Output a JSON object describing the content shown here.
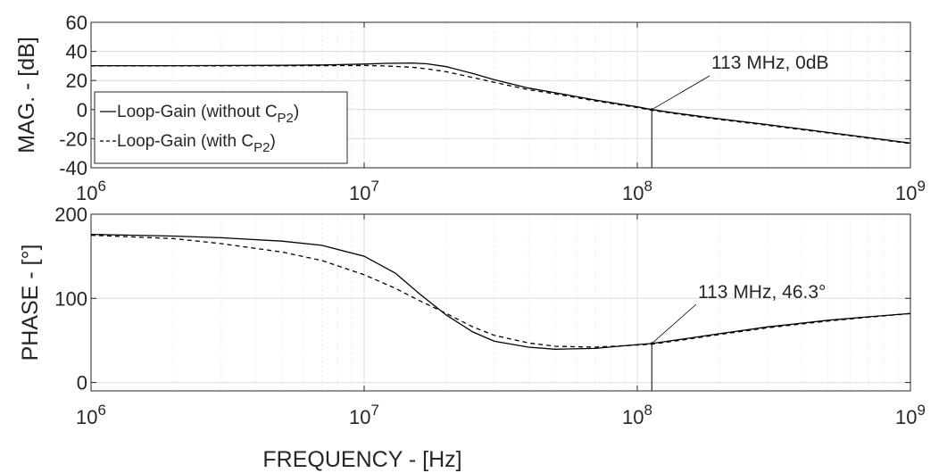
{
  "chart_data": {
    "xlabel": "FREQUENCY - [Hz]",
    "legend_position": "lower-left of magnitude plot",
    "legend": [
      {
        "label_main": "Loop-Gain (without C",
        "label_sub": "P2",
        "label_end": ")",
        "style": "solid"
      },
      {
        "label_main": "Loop-Gain (with C",
        "label_sub": "P2",
        "label_end": ")",
        "style": "dashed"
      }
    ],
    "x_ticks": [
      {
        "base": "10",
        "exp": "6"
      },
      {
        "base": "10",
        "exp": "7"
      },
      {
        "base": "10",
        "exp": "8"
      },
      {
        "base": "10",
        "exp": "9"
      }
    ],
    "marker_freq_hz": 113000000,
    "plots": [
      {
        "id": "magnitude",
        "type": "line",
        "x_scale": "log",
        "xlim": [
          1000000,
          1000000000
        ],
        "ylim": [
          -40,
          60
        ],
        "yticks": [
          -40,
          -20,
          0,
          20,
          40,
          60
        ],
        "ylabel": "MAG. - [dB]",
        "grid": true,
        "annotation": {
          "text": "113 MHz, 0dB",
          "x": 113000000,
          "y": 0
        },
        "series": [
          {
            "name": "Loop-Gain (without C_P2)",
            "style": "solid",
            "x": [
              1000000,
              2000000,
              5000000,
              7000000,
              10000000,
              12000000,
              15000000,
              17000000,
              20000000,
              25000000,
              30000000,
              40000000,
              50000000,
              70000000,
              100000000,
              113000000,
              150000000,
              200000000,
              300000000,
              500000000,
              700000000,
              1000000000
            ],
            "y": [
              30.2,
              30.2,
              30.4,
              30.7,
              31.3,
              31.8,
              32.0,
              31.5,
              29.5,
              24.8,
              20.5,
              14.8,
              11.6,
              6.6,
              1.9,
              0,
              -3.3,
              -6.3,
              -10.3,
              -15.7,
              -19.2,
              -23.0
            ]
          },
          {
            "name": "Loop-Gain (with C_P2)",
            "style": "dashed",
            "x": [
              1000000,
              2000000,
              5000000,
              7000000,
              10000000,
              12000000,
              15000000,
              17000000,
              20000000,
              25000000,
              30000000,
              40000000,
              50000000,
              70000000,
              100000000,
              113000000,
              150000000,
              200000000,
              300000000,
              500000000,
              700000000,
              1000000000
            ],
            "y": [
              30.0,
              30.0,
              30.1,
              30.2,
              30.3,
              30.0,
              29.1,
              28.0,
              26.0,
              22.0,
              18.7,
              13.7,
              10.8,
              6.0,
              1.4,
              -0.5,
              -3.8,
              -6.8,
              -10.8,
              -16.1,
              -19.6,
              -23.4
            ]
          }
        ]
      },
      {
        "id": "phase",
        "type": "line",
        "x_scale": "log",
        "xlim": [
          1000000,
          1000000000
        ],
        "ylim": [
          -10,
          200
        ],
        "yticks": [
          0,
          100,
          200
        ],
        "ylabel": "PHASE - [°]",
        "grid": true,
        "annotation": {
          "text": "113 MHz, 46.3°",
          "x": 113000000,
          "y": 46.3
        },
        "series": [
          {
            "name": "Loop-Gain (without C_P2)",
            "style": "solid",
            "x": [
              1000000,
              2000000,
              3000000,
              5000000,
              7000000,
              10000000,
              13000000,
              16000000,
              20000000,
              25000000,
              30000000,
              40000000,
              50000000,
              70000000,
              100000000,
              113000000,
              150000000,
              200000000,
              300000000,
              500000000,
              700000000,
              1000000000
            ],
            "y": [
              176,
              174,
              172,
              168,
              163,
              150,
              130,
              105,
              80,
              60,
              49,
              42,
              39.5,
              40.5,
              45,
              46.3,
              52,
              58,
              66,
              74,
              78,
              82
            ]
          },
          {
            "name": "Loop-Gain (with C_P2)",
            "style": "dashed",
            "x": [
              1000000,
              2000000,
              3000000,
              5000000,
              7000000,
              10000000,
              13000000,
              16000000,
              20000000,
              25000000,
              30000000,
              40000000,
              50000000,
              70000000,
              100000000,
              113000000,
              150000000,
              200000000,
              300000000,
              500000000,
              700000000,
              1000000000
            ],
            "y": [
              175,
              171,
              165,
              155,
              145,
              128,
              112,
              97,
              82,
              66,
              56,
              47,
              43,
              42,
              44.5,
              45.5,
              51,
              57,
              65,
              73,
              77.5,
              82
            ]
          }
        ]
      }
    ]
  }
}
